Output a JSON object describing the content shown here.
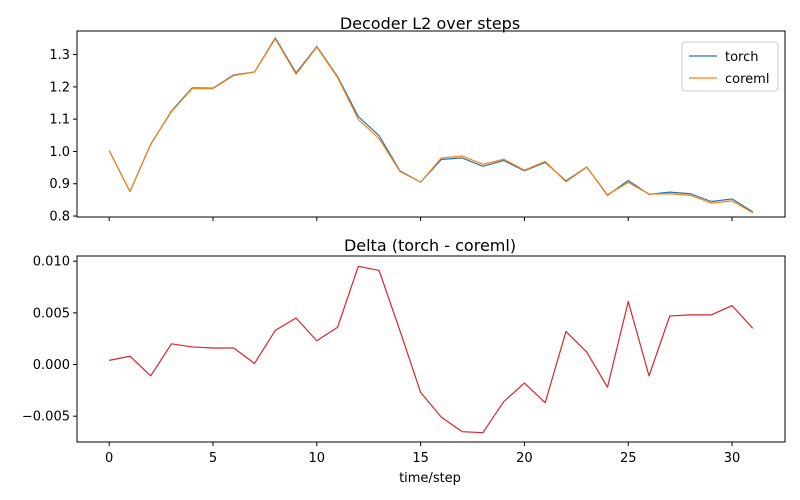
{
  "chart_data": [
    {
      "type": "line",
      "title": "Decoder L2 over steps",
      "xlabel": "",
      "ylabel": "",
      "xlim": [
        -1.55,
        32.55
      ],
      "ylim": [
        0.797,
        1.373
      ],
      "xticks": [
        0,
        5,
        10,
        15,
        20,
        25,
        30
      ],
      "yticks": [
        0.8,
        0.9,
        1.0,
        1.1,
        1.2,
        1.3
      ],
      "ytick_labels": [
        "0.8",
        "0.9",
        "1.0",
        "1.1",
        "1.2",
        "1.3"
      ],
      "show_xtick_labels": false,
      "grid": false,
      "legend": "top-right",
      "x": [
        0,
        1,
        2,
        3,
        4,
        5,
        6,
        7,
        8,
        9,
        10,
        11,
        12,
        13,
        14,
        15,
        16,
        17,
        18,
        19,
        20,
        21,
        22,
        23,
        24,
        25,
        26,
        27,
        28,
        29,
        30,
        31
      ],
      "series": [
        {
          "name": "torch",
          "color": "#1f77b4",
          "values": [
            1.003,
            0.876,
            1.022,
            1.125,
            1.197,
            1.196,
            1.237,
            1.246,
            1.352,
            1.243,
            1.325,
            1.232,
            1.108,
            1.049,
            0.94,
            0.905,
            0.975,
            0.98,
            0.954,
            0.972,
            0.94,
            0.966,
            0.909,
            0.952,
            0.864,
            0.91,
            0.867,
            0.874,
            0.869,
            0.845,
            0.853,
            0.813
          ]
        },
        {
          "name": "coreml",
          "color": "#ff7f0e",
          "values": [
            1.003,
            0.876,
            1.023,
            1.123,
            1.195,
            1.195,
            1.235,
            1.246,
            1.349,
            1.239,
            1.323,
            1.229,
            1.099,
            1.04,
            0.938,
            0.905,
            0.98,
            0.986,
            0.96,
            0.976,
            0.942,
            0.969,
            0.906,
            0.951,
            0.866,
            0.904,
            0.868,
            0.869,
            0.864,
            0.84,
            0.847,
            0.81
          ]
        }
      ]
    },
    {
      "type": "line",
      "title": "Delta (torch - coreml)",
      "xlabel": "time/step",
      "ylabel": "",
      "xlim": [
        -1.55,
        32.55
      ],
      "ylim": [
        -0.0075,
        0.0105
      ],
      "xticks": [
        0,
        5,
        10,
        15,
        20,
        25,
        30
      ],
      "xtick_labels": [
        "0",
        "5",
        "10",
        "15",
        "20",
        "25",
        "30"
      ],
      "yticks": [
        -0.005,
        0.0,
        0.005,
        0.01
      ],
      "ytick_labels": [
        "−0.005",
        "0.000",
        "0.005",
        "0.010"
      ],
      "grid": false,
      "x": [
        0,
        1,
        2,
        3,
        4,
        5,
        6,
        7,
        8,
        9,
        10,
        11,
        12,
        13,
        14,
        15,
        16,
        17,
        18,
        19,
        20,
        21,
        22,
        23,
        24,
        25,
        26,
        27,
        28,
        29,
        30,
        31
      ],
      "series": [
        {
          "color": "#d62728",
          "values": [
            0.0004,
            0.0008,
            -0.0011,
            0.002,
            0.0017,
            0.0016,
            0.0016,
            0.0001,
            0.0033,
            0.0045,
            0.0023,
            0.0036,
            0.0095,
            0.0091,
            0.0033,
            -0.0027,
            -0.0051,
            -0.0065,
            -0.0066,
            -0.0036,
            -0.0018,
            -0.0037,
            0.0032,
            0.0012,
            -0.0022,
            0.0061,
            -0.0011,
            0.0047,
            0.0048,
            0.0048,
            0.0057,
            0.0035
          ]
        }
      ]
    }
  ]
}
